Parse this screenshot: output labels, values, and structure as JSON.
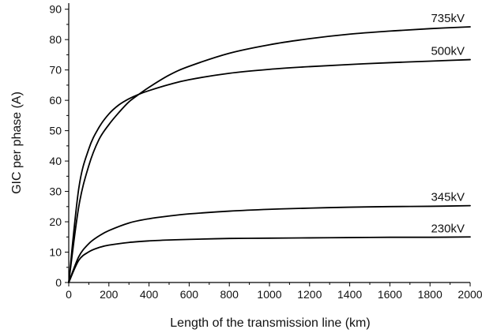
{
  "chart_data": {
    "type": "line",
    "title": "",
    "xlabel": "Length of the transmission line (km)",
    "ylabel": "GIC per phase (A)",
    "xlim": [
      0,
      2000
    ],
    "ylim": [
      0,
      92
    ],
    "x_ticks": [
      0,
      200,
      400,
      600,
      800,
      1000,
      1200,
      1400,
      1600,
      1800,
      2000
    ],
    "x_tick_labels": [
      "0",
      "200",
      "400",
      "600",
      "800",
      "1000",
      "1200",
      "1400",
      "1600",
      "1800",
      "2000"
    ],
    "y_ticks": [
      0,
      10,
      20,
      30,
      40,
      50,
      60,
      70,
      80,
      90
    ],
    "y_tick_labels": [
      "0",
      "10",
      "20",
      "30",
      "40",
      "50",
      "60",
      "70",
      "80",
      "90"
    ],
    "grid": false,
    "legend": "none",
    "line_color": "#000000",
    "series": [
      {
        "name": "735kV",
        "x": [
          0,
          50,
          100,
          150,
          200,
          250,
          300,
          350,
          400,
          500,
          600,
          800,
          1000,
          1200,
          1400,
          1600,
          1800,
          2000
        ],
        "y": [
          0,
          25,
          38.5,
          47,
          52,
          56,
          59.5,
          62,
          64.3,
          68.3,
          71.2,
          75.5,
          78.3,
          80.3,
          81.8,
          82.8,
          83.6,
          84.2
        ]
      },
      {
        "name": "500kV",
        "x": [
          0,
          50,
          100,
          150,
          200,
          250,
          300,
          350,
          400,
          500,
          600,
          800,
          1000,
          1200,
          1400,
          1600,
          1800,
          2000
        ],
        "y": [
          0,
          31,
          44,
          51,
          55.5,
          58.5,
          60.5,
          62,
          63.2,
          65.2,
          66.8,
          68.9,
          70.2,
          71.1,
          71.8,
          72.4,
          72.9,
          73.4
        ]
      },
      {
        "name": "345kV",
        "x": [
          0,
          50,
          100,
          150,
          200,
          300,
          400,
          500,
          600,
          800,
          1000,
          1200,
          1400,
          1600,
          1800,
          2000
        ],
        "y": [
          0,
          8.5,
          12.8,
          15.3,
          17.1,
          19.6,
          21.0,
          21.9,
          22.6,
          23.5,
          24.1,
          24.5,
          24.8,
          25.0,
          25.1,
          25.3
        ]
      },
      {
        "name": "230kV",
        "x": [
          0,
          50,
          100,
          150,
          200,
          300,
          400,
          500,
          600,
          800,
          1000,
          1200,
          1400,
          1600,
          1800,
          2000
        ],
        "y": [
          0,
          7.3,
          10.1,
          11.5,
          12.3,
          13.2,
          13.7,
          14.0,
          14.2,
          14.5,
          14.6,
          14.7,
          14.8,
          14.9,
          14.9,
          15.0
        ]
      }
    ]
  }
}
